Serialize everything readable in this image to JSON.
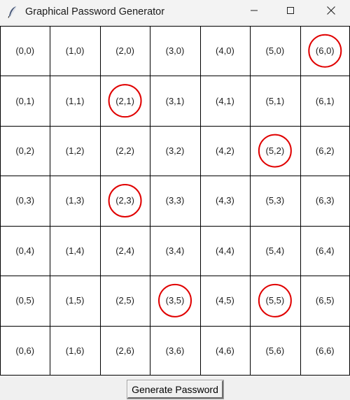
{
  "window": {
    "title": "Graphical Password Generator",
    "icons": {
      "app": "feather-icon",
      "minimize": "minimize-icon",
      "maximize": "maximize-icon",
      "close": "close-icon"
    }
  },
  "grid": {
    "columns": 7,
    "rows": 7,
    "cells": [
      [
        "(0,0)",
        "(1,0)",
        "(2,0)",
        "(3,0)",
        "(4,0)",
        "(5,0)",
        "(6,0)"
      ],
      [
        "(0,1)",
        "(1,1)",
        "(2,1)",
        "(3,1)",
        "(4,1)",
        "(5,1)",
        "(6,1)"
      ],
      [
        "(0,2)",
        "(1,2)",
        "(2,2)",
        "(3,2)",
        "(4,2)",
        "(5,2)",
        "(6,2)"
      ],
      [
        "(0,3)",
        "(1,3)",
        "(2,3)",
        "(3,3)",
        "(4,3)",
        "(5,3)",
        "(6,3)"
      ],
      [
        "(0,4)",
        "(1,4)",
        "(2,4)",
        "(3,4)",
        "(4,4)",
        "(5,4)",
        "(6,4)"
      ],
      [
        "(0,5)",
        "(1,5)",
        "(2,5)",
        "(3,5)",
        "(4,5)",
        "(5,5)",
        "(6,5)"
      ],
      [
        "(0,6)",
        "(1,6)",
        "(2,6)",
        "(3,6)",
        "(4,6)",
        "(5,6)",
        "(6,6)"
      ]
    ],
    "selected": [
      [
        6,
        0
      ],
      [
        2,
        1
      ],
      [
        5,
        2
      ],
      [
        2,
        3
      ],
      [
        3,
        5
      ],
      [
        5,
        5
      ]
    ],
    "selection_color": "#e00000",
    "line_color": "#000000"
  },
  "actions": {
    "generate_label": "Generate Password"
  }
}
